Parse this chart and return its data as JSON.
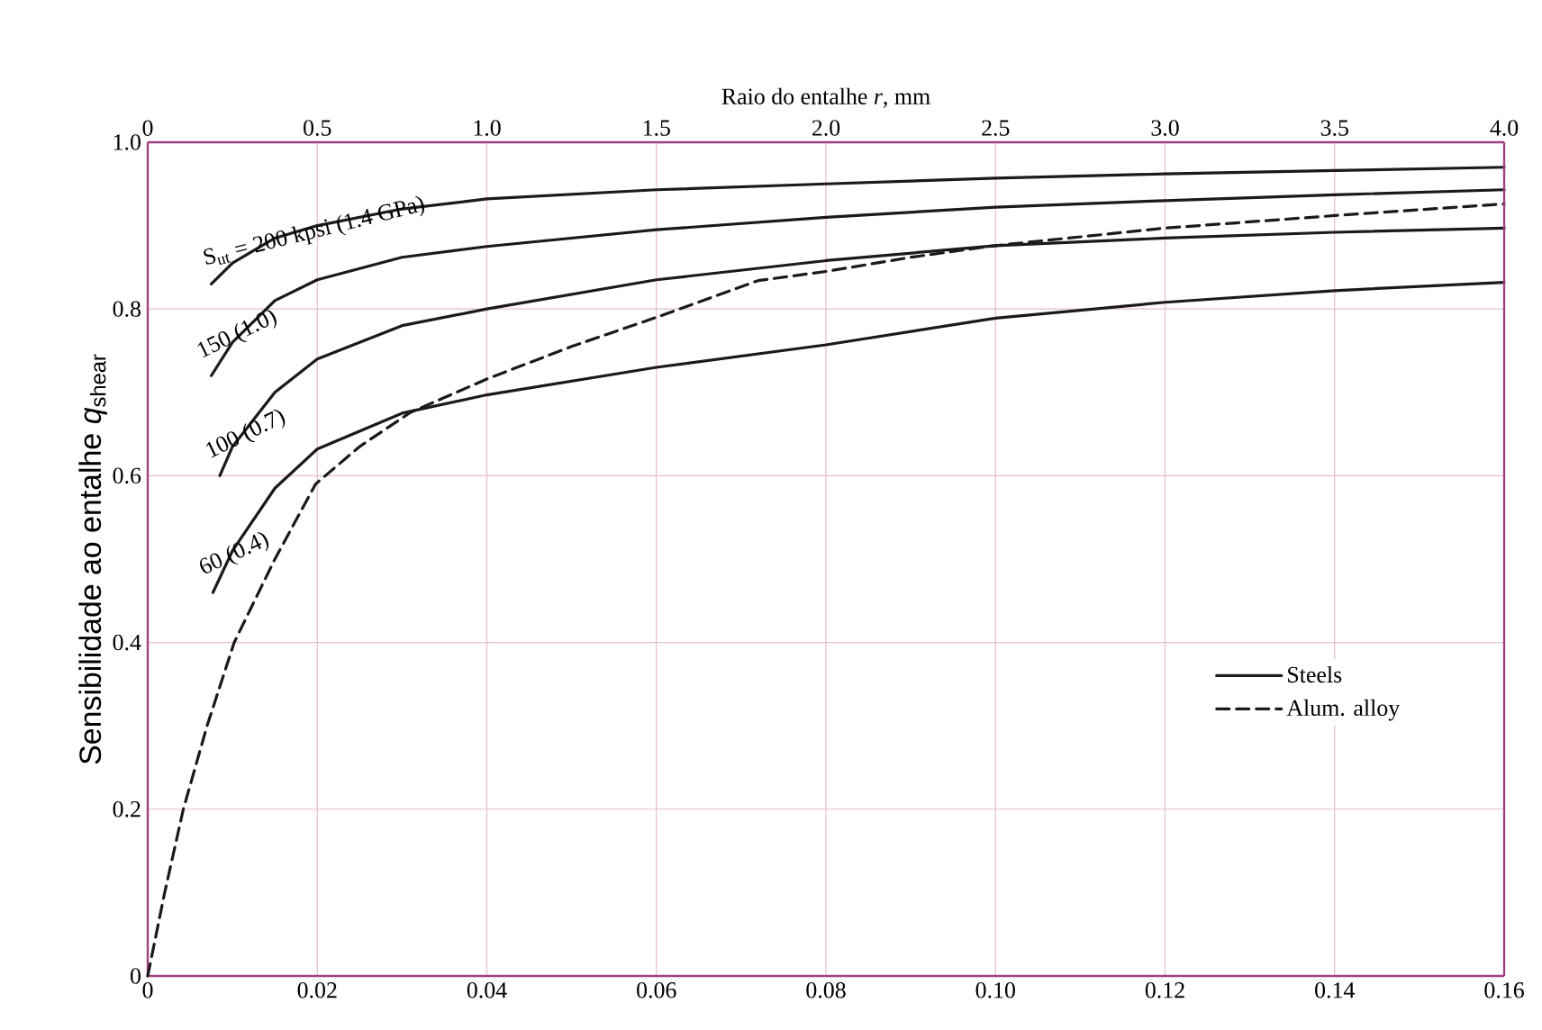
{
  "chart_data": {
    "type": "line",
    "x2label": "Raio do entalhe *r*, mm",
    "ylabel": "Sensibilidade ao entalhe *q*$_{shear}$",
    "xlim": [
      0,
      0.16
    ],
    "xticks": [
      0,
      0.02,
      0.04,
      0.06,
      0.08,
      {
        "value": 0.1,
        "label": "0.10"
      },
      0.12,
      0.14,
      0.16
    ],
    "x2lim": [
      0,
      4.0
    ],
    "x2ticks": [
      0,
      0.5,
      {
        "value": 1,
        "label": "1.0"
      },
      1.5,
      {
        "value": 2,
        "label": "2.0"
      },
      2.5,
      {
        "value": 3,
        "label": "3.0"
      },
      3.5,
      {
        "value": 4,
        "label": "4.0"
      }
    ],
    "ylim": [
      0,
      1.0
    ],
    "yticks": [
      0,
      0.2,
      0.4,
      0.6,
      0.8,
      {
        "value": 1,
        "label": "1.0"
      }
    ],
    "grid": true,
    "legend": "bottom right",
    "marker": "none",
    "series": [
      {
        "name": "Steels",
        "color": "#1a1a1a",
        "line_style": "solid",
        "x": [
          0.0075,
          0.01,
          0.015,
          0.02,
          0.03,
          0.04,
          0.06,
          0.08,
          0.1,
          0.12,
          0.14,
          0.16
        ],
        "values": [
          0.83,
          0.855,
          0.885,
          0.9,
          0.92,
          0.932,
          0.943,
          0.95,
          0.957,
          0.962,
          0.966,
          0.97
        ]
      },
      {
        "color": "#1a1a1a",
        "line_style": "solid",
        "x": [
          0.0075,
          0.01,
          0.015,
          0.02,
          0.03,
          0.04,
          0.06,
          0.08,
          0.1,
          0.12,
          0.14,
          0.16
        ],
        "values": [
          0.72,
          0.76,
          0.81,
          0.835,
          0.862,
          0.875,
          0.895,
          0.91,
          0.922,
          0.93,
          0.937,
          0.943
        ]
      },
      {
        "color": "#1a1a1a",
        "line_style": "solid",
        "x": [
          0.0085,
          0.01,
          0.015,
          0.02,
          0.03,
          0.04,
          0.06,
          0.08,
          0.1,
          0.12,
          0.14,
          0.16
        ],
        "values": [
          0.6,
          0.635,
          0.7,
          0.74,
          0.78,
          0.8,
          0.835,
          0.858,
          0.876,
          0.885,
          0.892,
          0.897
        ]
      },
      {
        "color": "#1a1a1a",
        "line_style": "solid",
        "x": [
          0.0077,
          0.01,
          0.015,
          0.02,
          0.03,
          0.04,
          0.06,
          0.08,
          0.1,
          0.12,
          0.14,
          0.16
        ],
        "values": [
          0.46,
          0.51,
          0.585,
          0.632,
          0.675,
          0.697,
          0.73,
          0.757,
          0.789,
          0.808,
          0.822,
          0.832
        ]
      },
      {
        "name": "Alum. alloy",
        "color": "#1a1a1a",
        "line_style": "dashed",
        "x": [
          0,
          0.002,
          0.0042,
          0.007,
          0.0102,
          0.015,
          0.0198,
          0.025,
          0.031,
          0.04,
          0.05,
          0.06,
          0.072,
          0.08,
          0.09,
          0.1,
          0.12,
          0.14,
          0.16
        ],
        "values": [
          0,
          0.1,
          0.2,
          0.3,
          0.4,
          0.5,
          0.59,
          0.635,
          0.676,
          0.716,
          0.755,
          0.79,
          0.834,
          0.845,
          0.862,
          0.876,
          0.897,
          0.912,
          0.926
        ]
      }
    ],
    "annotations": [
      "S$_{ut}$ = 200 kpsi  (1.4 GPa)",
      "150  (1.0)",
      "100  (0.7)",
      "60  (0.4)"
    ]
  }
}
